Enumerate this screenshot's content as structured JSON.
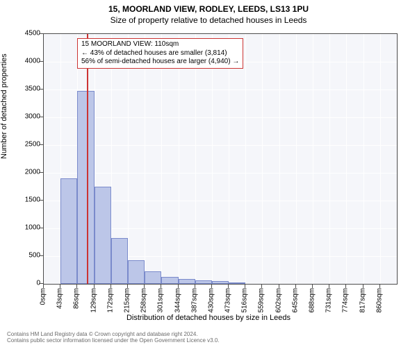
{
  "title": "15, MOORLAND VIEW, RODLEY, LEEDS, LS13 1PU",
  "subtitle": "Size of property relative to detached houses in Leeds",
  "y_axis_label": "Number of detached properties",
  "x_axis_label": "Distribution of detached houses by size in Leeds",
  "chart": {
    "type": "histogram",
    "background_color": "#f5f6fa",
    "grid_color": "#ffffff",
    "border_color": "#4c4c4c",
    "bar_fill": "#bcc6e8",
    "bar_border": "#7a8acb",
    "marker_color": "#cc3333",
    "ylim": [
      0,
      4500
    ],
    "yticks": [
      0,
      500,
      1000,
      1500,
      2000,
      2500,
      3000,
      3500,
      4000,
      4500
    ],
    "xlim": [
      0,
      903
    ],
    "xticks": [
      0,
      43,
      86,
      129,
      172,
      215,
      258,
      301,
      344,
      387,
      430,
      473,
      516,
      559,
      602,
      645,
      688,
      731,
      774,
      817,
      860
    ],
    "xtick_labels": [
      "0sqm",
      "43sqm",
      "86sqm",
      "129sqm",
      "172sqm",
      "215sqm",
      "258sqm",
      "301sqm",
      "344sqm",
      "387sqm",
      "430sqm",
      "473sqm",
      "516sqm",
      "559sqm",
      "602sqm",
      "645sqm",
      "688sqm",
      "731sqm",
      "774sqm",
      "817sqm",
      "860sqm"
    ],
    "bin_width": 43,
    "values": [
      0,
      1900,
      3480,
      1750,
      830,
      430,
      220,
      130,
      90,
      60,
      50,
      30,
      0,
      0,
      0,
      0,
      0,
      0,
      0,
      0,
      0
    ],
    "marker_x": 110
  },
  "annotation": {
    "line1": "15 MOORLAND VIEW: 110sqm",
    "line2": "← 43% of detached houses are smaller (3,814)",
    "line3": "56% of semi-detached houses are larger (4,940) →"
  },
  "footer": {
    "line1": "Contains HM Land Registry data © Crown copyright and database right 2024.",
    "line2": "Contains public sector information licensed under the Open Government Licence v3.0."
  }
}
